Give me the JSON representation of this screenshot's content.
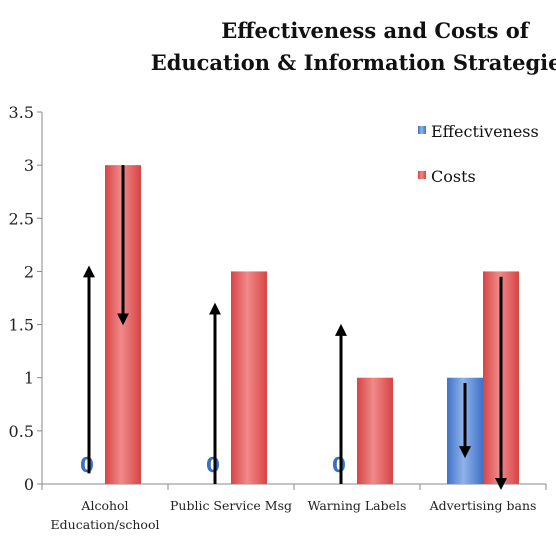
{
  "chart_data": {
    "type": "bar",
    "title": [
      "Effectiveness and Costs of",
      "Education & Information Strategies"
    ],
    "categories": [
      [
        "Alcohol",
        "Education/school"
      ],
      [
        "Public Service Msg"
      ],
      [
        "Warning Labels"
      ],
      [
        "Advertising bans"
      ]
    ],
    "series": [
      {
        "name": "Effectiveness",
        "values": [
          0,
          0,
          0,
          1
        ],
        "color": "#4a7fd0",
        "zero_labels": [
          "0",
          "0",
          "0",
          ""
        ]
      },
      {
        "name": "Costs",
        "values": [
          3,
          2,
          1,
          2
        ],
        "color": "#e25050"
      }
    ],
    "ylim": [
      0,
      3.5
    ],
    "yticks": [
      "0",
      "0.5",
      "1",
      "1.5",
      "2",
      "2.5",
      "3",
      "3.5"
    ],
    "legend_position": "top-right",
    "grid": false,
    "annotations": {
      "arrows": [
        {
          "x_category": 0,
          "from": 0.1,
          "to": 2.0
        },
        {
          "x_category": 0,
          "offset": "costs",
          "from": 3.0,
          "to": 1.55
        },
        {
          "x_category": 1,
          "from": 0.0,
          "to": 1.65
        },
        {
          "x_category": 2,
          "from": 0.0,
          "to": 1.45
        },
        {
          "x_category": 3,
          "offset": "effectiveness",
          "from": 0.95,
          "to": 0.3
        },
        {
          "x_category": 3,
          "offset": "costs",
          "from": 1.95,
          "to": 0.0
        }
      ]
    }
  }
}
